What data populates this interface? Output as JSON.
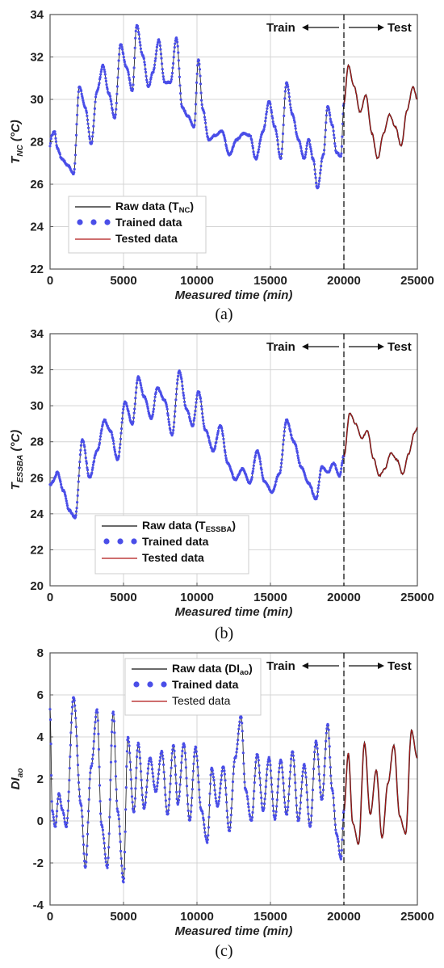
{
  "figure": {
    "arrow_left": "Train",
    "arrow_right": "Test"
  },
  "chart_data": [
    {
      "type": "line",
      "caption": "(a)",
      "xlabel": "Measured time (min)",
      "ylabel": "T",
      "ylabel_sub": "NC",
      "ylabel_unit": " (°C)",
      "xlim": [
        0,
        25000
      ],
      "ylim": [
        22,
        34
      ],
      "xticks": [
        0,
        5000,
        10000,
        15000,
        20000,
        25000
      ],
      "yticks": [
        22,
        24,
        26,
        28,
        30,
        32,
        34
      ],
      "split_x": 20000,
      "legend_position": "lower-left",
      "legend": {
        "raw": "Raw data (T",
        "raw_sub": "NC",
        "raw_tail": ")",
        "trained": "Trained data",
        "tested": "Tested data"
      },
      "colors": {
        "raw": "#111111",
        "trained": "#4a4ee8",
        "tested": "#b01818"
      },
      "series": [
        {
          "name": "Trained data",
          "x": [
            0,
            100,
            300,
            500,
            800,
            1200,
            1600,
            2000,
            2400,
            2800,
            3200,
            3600,
            4000,
            4400,
            4800,
            5200,
            5600,
            5900,
            6300,
            6700,
            7000,
            7400,
            7800,
            8200,
            8600,
            9000,
            9400,
            9800,
            10100,
            10400,
            10800,
            11200,
            11700,
            12200,
            12700,
            13200,
            13600,
            14000,
            14500,
            14900,
            15300,
            15700,
            16100,
            16500,
            16900,
            17300,
            17600,
            17900,
            18200,
            18600,
            18900,
            19200,
            19500,
            19800,
            20000
          ],
          "y": [
            27.8,
            28.3,
            28.5,
            27.7,
            27.2,
            26.9,
            26.5,
            30.6,
            29.6,
            27.9,
            30.4,
            31.6,
            30.3,
            29.1,
            32.6,
            31.5,
            30.4,
            33.5,
            32.1,
            30.6,
            31.3,
            32.8,
            30.8,
            30.8,
            32.9,
            29.6,
            29.2,
            28.7,
            31.9,
            29.5,
            28.1,
            28.3,
            28.5,
            27.4,
            28.1,
            28.4,
            28.3,
            27.2,
            28.5,
            29.9,
            28.7,
            27.2,
            30.8,
            29.3,
            28.1,
            27.2,
            28.1,
            27.2,
            25.8,
            27.4,
            29.7,
            28.8,
            27.5,
            27.3,
            29.8
          ]
        },
        {
          "name": "Tested data",
          "x": [
            20000,
            20300,
            20700,
            21100,
            21500,
            21900,
            22300,
            22700,
            23100,
            23500,
            23900,
            24300,
            24700,
            25000
          ],
          "y": [
            29.8,
            31.6,
            30.6,
            29.4,
            30.2,
            28.4,
            27.2,
            28.4,
            29.3,
            28.7,
            27.8,
            29.5,
            30.6,
            30.0
          ]
        }
      ]
    },
    {
      "type": "line",
      "caption": "(b)",
      "xlabel": "Measured time (min)",
      "ylabel": "T",
      "ylabel_sub": "ESSBA",
      "ylabel_unit": " (°C)",
      "xlim": [
        0,
        25000
      ],
      "ylim": [
        20,
        34
      ],
      "xticks": [
        0,
        5000,
        10000,
        15000,
        20000,
        25000
      ],
      "yticks": [
        20,
        22,
        24,
        26,
        28,
        30,
        32,
        34
      ],
      "split_x": 20000,
      "legend_position": "lower-left",
      "legend": {
        "raw": "Raw data (T",
        "raw_sub": "ESSBA",
        "raw_tail": ")",
        "trained": "Trained data",
        "tested": "Tested data"
      },
      "colors": {
        "raw": "#111111",
        "trained": "#4a4ee8",
        "tested": "#b01818"
      },
      "series": [
        {
          "name": "Trained data",
          "x": [
            0,
            200,
            500,
            900,
            1300,
            1700,
            2200,
            2700,
            3200,
            3700,
            4100,
            4600,
            5100,
            5600,
            6000,
            6400,
            6900,
            7300,
            7800,
            8300,
            8800,
            9300,
            9700,
            10100,
            10600,
            11100,
            11600,
            12100,
            12600,
            13100,
            13600,
            14100,
            14600,
            15100,
            15600,
            16100,
            16600,
            17100,
            17600,
            18100,
            18500,
            18900,
            19300,
            19700,
            20000
          ],
          "y": [
            25.6,
            25.8,
            26.3,
            25.3,
            24.2,
            23.8,
            28.1,
            26.0,
            27.5,
            29.2,
            28.6,
            27.0,
            30.2,
            29.0,
            31.6,
            30.5,
            29.3,
            31.0,
            30.3,
            28.4,
            31.9,
            29.8,
            28.9,
            30.8,
            28.6,
            27.5,
            28.9,
            26.8,
            25.9,
            26.5,
            25.7,
            27.5,
            25.8,
            25.2,
            26.2,
            29.2,
            28.0,
            26.6,
            25.7,
            24.8,
            26.6,
            26.3,
            26.8,
            26.1,
            27.2
          ]
        },
        {
          "name": "Tested data",
          "x": [
            20000,
            20400,
            20800,
            21200,
            21600,
            22000,
            22400,
            22800,
            23200,
            23600,
            24000,
            24400,
            24800,
            25000
          ],
          "y": [
            27.2,
            29.6,
            29.0,
            28.2,
            28.6,
            27.1,
            26.1,
            26.5,
            27.4,
            27.0,
            26.2,
            27.3,
            28.5,
            28.8
          ]
        }
      ]
    },
    {
      "type": "line",
      "caption": "(c)",
      "xlabel": "Measured time (min)",
      "ylabel": "DI",
      "ylabel_sub": "ao",
      "ylabel_unit": "",
      "xlim": [
        0,
        25000
      ],
      "ylim": [
        -4,
        8
      ],
      "xticks": [
        0,
        5000,
        10000,
        15000,
        20000,
        25000
      ],
      "yticks": [
        -4,
        -2,
        0,
        2,
        4,
        6,
        8
      ],
      "split_x": 20000,
      "legend_position": "top-center",
      "legend": {
        "raw": "Raw data (DI",
        "raw_sub": "ao",
        "raw_tail": ")",
        "trained": "Trained data",
        "tested": "Tested data"
      },
      "colors": {
        "raw": "#111111",
        "trained": "#4a4ee8",
        "tested": "#b01818"
      },
      "series": [
        {
          "name": "Trained data",
          "x": [
            0,
            150,
            350,
            600,
            850,
            1100,
            1600,
            2100,
            2400,
            2800,
            3200,
            3500,
            3900,
            4300,
            4600,
            5000,
            5300,
            5700,
            6000,
            6400,
            6800,
            7200,
            7600,
            8000,
            8400,
            8700,
            9100,
            9500,
            9900,
            10300,
            10700,
            11000,
            11400,
            11800,
            12200,
            12600,
            13000,
            13300,
            13700,
            14100,
            14500,
            14900,
            15300,
            15700,
            16100,
            16500,
            16900,
            17300,
            17700,
            18100,
            18500,
            18900,
            19200,
            19500,
            19800,
            20000
          ],
          "y": [
            5.3,
            0.5,
            -0.3,
            1.3,
            0.5,
            -0.3,
            5.9,
            0.8,
            -2.2,
            2.6,
            5.3,
            -0.2,
            -2.2,
            5.2,
            0.5,
            -2.9,
            4.0,
            0.4,
            3.7,
            0.6,
            3.0,
            1.4,
            3.3,
            0.3,
            3.6,
            0.8,
            3.7,
            0.0,
            3.5,
            0.5,
            -1.0,
            2.5,
            0.7,
            2.6,
            -0.5,
            3.0,
            5.0,
            1.5,
            0.0,
            3.2,
            0.5,
            3.0,
            0.1,
            2.9,
            0.3,
            3.3,
            0.0,
            2.7,
            -0.3,
            3.8,
            1.0,
            4.6,
            1.5,
            -0.6,
            -1.8,
            0.5
          ]
        },
        {
          "name": "Tested data",
          "x": [
            20000,
            20300,
            20600,
            21000,
            21400,
            21800,
            22200,
            22600,
            23000,
            23400,
            23800,
            24200,
            24600,
            25000
          ],
          "y": [
            0.5,
            3.2,
            -0.1,
            -1.1,
            3.7,
            0.3,
            2.4,
            -0.8,
            1.8,
            3.6,
            0.2,
            -0.6,
            4.3,
            3.0
          ]
        }
      ]
    }
  ]
}
